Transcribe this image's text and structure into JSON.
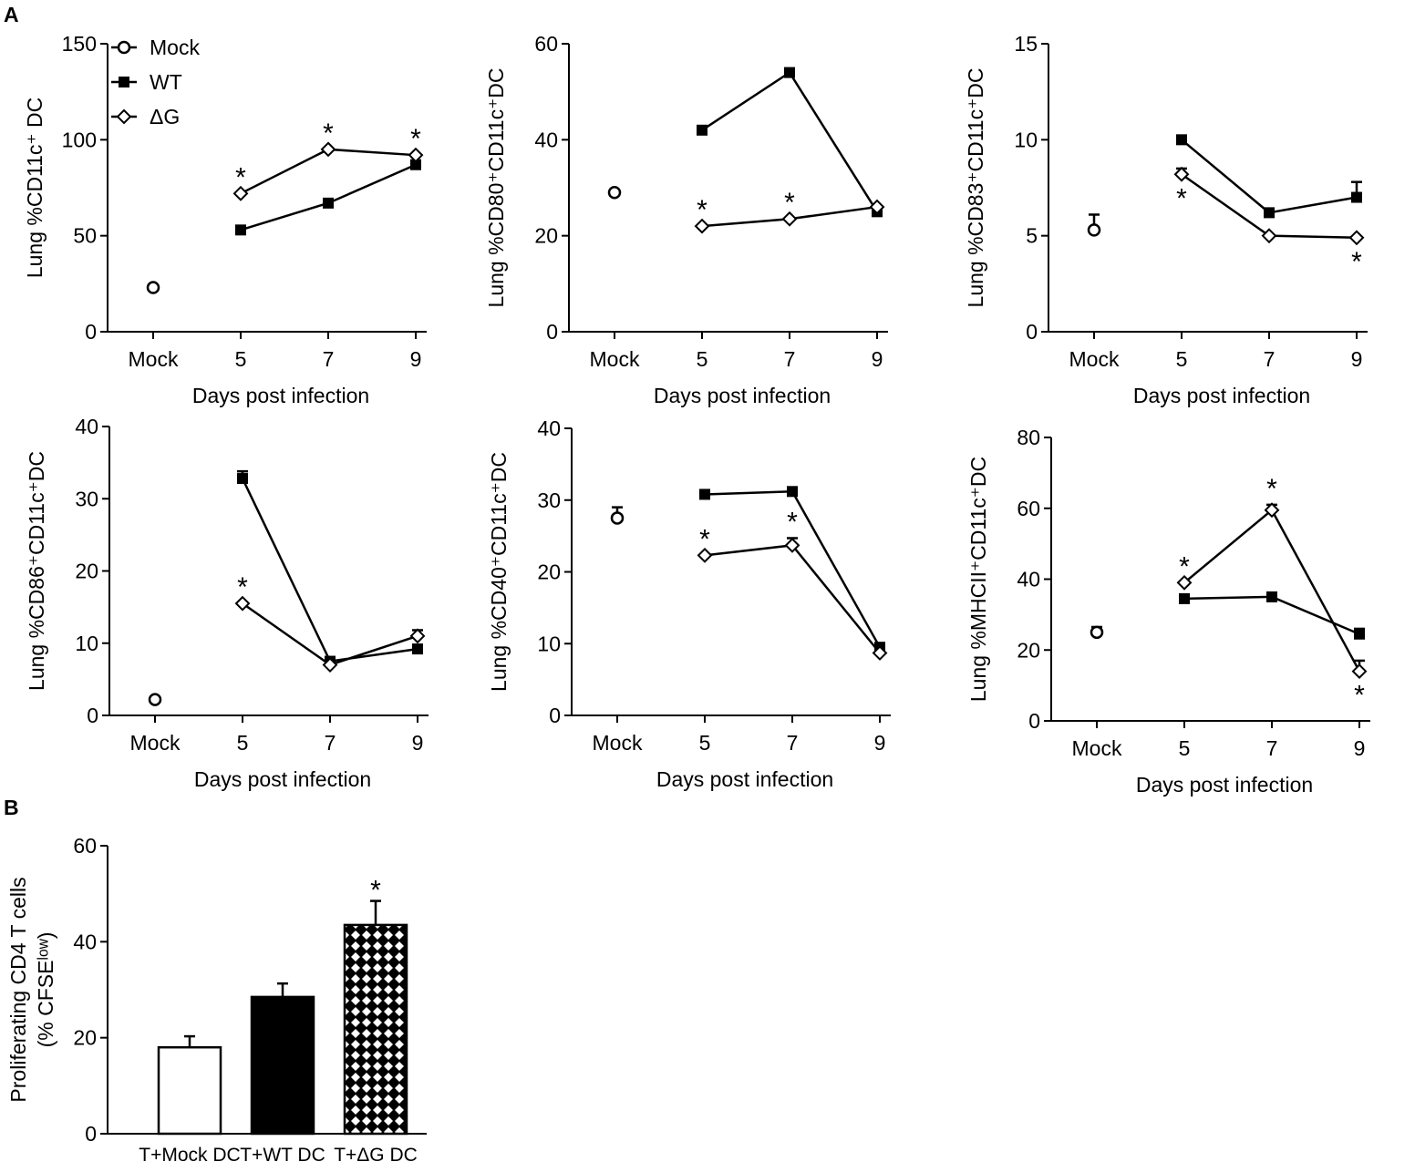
{
  "panel_labels": [
    "A",
    "B"
  ],
  "chart_data": [
    {
      "type": "line",
      "ylabel": "Lung %CD11c⁺ DC",
      "xlabel": "Days post infection",
      "categories": [
        "Mock",
        "5",
        "7",
        "9"
      ],
      "ylim": [
        0,
        150
      ],
      "yticks": [
        0,
        50,
        100,
        150
      ],
      "legend": "upper left",
      "series": [
        {
          "name": "Mock",
          "marker": "circle",
          "values": [
            23,
            null,
            null,
            null
          ],
          "errors": [
            null,
            null,
            null,
            null
          ]
        },
        {
          "name": "WT",
          "marker": "square",
          "values": [
            null,
            53,
            67,
            87
          ],
          "errors": [
            null,
            null,
            null,
            null
          ]
        },
        {
          "name": "ΔG",
          "marker": "diamond",
          "values": [
            null,
            72,
            95,
            92
          ],
          "errors": [
            null,
            null,
            null,
            null
          ]
        }
      ],
      "annotations": [
        {
          "text": "*",
          "series": 2,
          "index": 1,
          "side": "above"
        },
        {
          "text": "*",
          "series": 2,
          "index": 2,
          "side": "above"
        },
        {
          "text": "*",
          "series": 2,
          "index": 3,
          "side": "above"
        }
      ]
    },
    {
      "type": "line",
      "ylabel": "Lung %CD80⁺CD11c⁺DC",
      "xlabel": "Days post infection",
      "categories": [
        "Mock",
        "5",
        "7",
        "9"
      ],
      "ylim": [
        0,
        60
      ],
      "yticks": [
        0,
        20,
        40,
        60
      ],
      "series": [
        {
          "name": "Mock",
          "marker": "circle",
          "values": [
            29,
            null,
            null,
            null
          ],
          "errors": [
            null,
            null,
            null,
            null
          ]
        },
        {
          "name": "WT",
          "marker": "square",
          "values": [
            null,
            42,
            54,
            25
          ],
          "errors": [
            null,
            null,
            null,
            null
          ]
        },
        {
          "name": "ΔG",
          "marker": "diamond",
          "values": [
            null,
            22,
            23.5,
            26
          ],
          "errors": [
            null,
            null,
            null,
            null
          ]
        }
      ],
      "annotations": [
        {
          "text": "*",
          "series": 2,
          "index": 1,
          "side": "above"
        },
        {
          "text": "*",
          "series": 2,
          "index": 2,
          "side": "above"
        }
      ]
    },
    {
      "type": "line",
      "ylabel": "Lung %CD83⁺CD11c⁺DC",
      "xlabel": "Days post infection",
      "categories": [
        "Mock",
        "5",
        "7",
        "9"
      ],
      "ylim": [
        0,
        15
      ],
      "yticks": [
        0,
        5,
        10,
        15
      ],
      "series": [
        {
          "name": "Mock",
          "marker": "circle",
          "values": [
            5.3,
            null,
            null,
            null
          ],
          "errors": [
            0.8,
            null,
            null,
            null
          ]
        },
        {
          "name": "WT",
          "marker": "square",
          "values": [
            null,
            10,
            6.2,
            7
          ],
          "errors": [
            null,
            null,
            null,
            0.8
          ]
        },
        {
          "name": "ΔG",
          "marker": "diamond",
          "values": [
            null,
            8.2,
            5,
            4.9
          ],
          "errors": [
            null,
            0.3,
            null,
            null
          ]
        }
      ],
      "annotations": [
        {
          "text": "*",
          "series": 2,
          "index": 1,
          "side": "below"
        },
        {
          "text": "*",
          "series": 2,
          "index": 3,
          "side": "below"
        }
      ]
    },
    {
      "type": "line",
      "ylabel": "Lung %CD86⁺CD11c⁺DC",
      "xlabel": "Days post infection",
      "categories": [
        "Mock",
        "5",
        "7",
        "9"
      ],
      "ylim": [
        0,
        40
      ],
      "yticks": [
        0,
        10,
        20,
        30,
        40
      ],
      "series": [
        {
          "name": "Mock",
          "marker": "circle",
          "values": [
            2.2,
            null,
            null,
            null
          ],
          "errors": [
            null,
            null,
            null,
            null
          ]
        },
        {
          "name": "WT",
          "marker": "square",
          "values": [
            null,
            32.8,
            7.5,
            9.2
          ],
          "errors": [
            null,
            1,
            null,
            null
          ]
        },
        {
          "name": "ΔG",
          "marker": "diamond",
          "values": [
            null,
            15.5,
            7,
            11
          ],
          "errors": [
            null,
            null,
            null,
            0.8
          ]
        }
      ],
      "annotations": [
        {
          "text": "*",
          "series": 2,
          "index": 1,
          "side": "above"
        }
      ]
    },
    {
      "type": "line",
      "ylabel": "Lung %CD40⁺CD11c⁺DC",
      "xlabel": "Days post infection",
      "categories": [
        "Mock",
        "5",
        "7",
        "9"
      ],
      "ylim": [
        0,
        40
      ],
      "yticks": [
        0,
        10,
        20,
        30,
        40
      ],
      "series": [
        {
          "name": "Mock",
          "marker": "circle",
          "values": [
            27.5,
            null,
            null,
            null
          ],
          "errors": [
            1.5,
            null,
            null,
            null
          ]
        },
        {
          "name": "WT",
          "marker": "square",
          "values": [
            null,
            30.8,
            31.2,
            9.5
          ],
          "errors": [
            null,
            null,
            null,
            null
          ]
        },
        {
          "name": "ΔG",
          "marker": "diamond",
          "values": [
            null,
            22.3,
            23.7,
            8.7
          ],
          "errors": [
            null,
            null,
            1,
            null
          ]
        }
      ],
      "annotations": [
        {
          "text": "*",
          "series": 2,
          "index": 1,
          "side": "above"
        },
        {
          "text": "*",
          "series": 2,
          "index": 2,
          "side": "above"
        }
      ]
    },
    {
      "type": "line",
      "ylabel": "Lung %MHCII⁺CD11c⁺DC",
      "xlabel": "Days post infection",
      "categories": [
        "Mock",
        "5",
        "7",
        "9"
      ],
      "ylim": [
        0,
        80
      ],
      "yticks": [
        0,
        20,
        40,
        60,
        80
      ],
      "series": [
        {
          "name": "Mock",
          "marker": "circle",
          "values": [
            25,
            null,
            null,
            null
          ],
          "errors": [
            1.5,
            null,
            null,
            null
          ]
        },
        {
          "name": "WT",
          "marker": "square",
          "values": [
            null,
            34.5,
            35,
            24.5
          ],
          "errors": [
            null,
            null,
            null,
            1.5
          ]
        },
        {
          "name": "ΔG",
          "marker": "diamond",
          "values": [
            null,
            39,
            59.5,
            14
          ],
          "errors": [
            null,
            null,
            1.5,
            3
          ]
        }
      ],
      "annotations": [
        {
          "text": "*",
          "series": 2,
          "index": 1,
          "side": "above"
        },
        {
          "text": "*",
          "series": 2,
          "index": 2,
          "side": "above"
        },
        {
          "text": "*",
          "series": 2,
          "index": 3,
          "side": "below"
        }
      ]
    },
    {
      "type": "bar",
      "ylabel": [
        "Proliferating CD4 T cells",
        "(% CFSEˡᵒʷ)"
      ],
      "categories": [
        "T+Mock DC",
        "T+WT DC",
        "T+ΔG DC"
      ],
      "values": [
        18,
        28.5,
        43.5
      ],
      "errors": [
        2.3,
        2.8,
        5
      ],
      "fills": [
        "white",
        "black",
        "crosshatch"
      ],
      "ylim": [
        0,
        60
      ],
      "yticks": [
        0,
        20,
        40,
        60
      ],
      "annotations": [
        {
          "text": "*",
          "index": 2,
          "side": "above"
        }
      ]
    }
  ]
}
